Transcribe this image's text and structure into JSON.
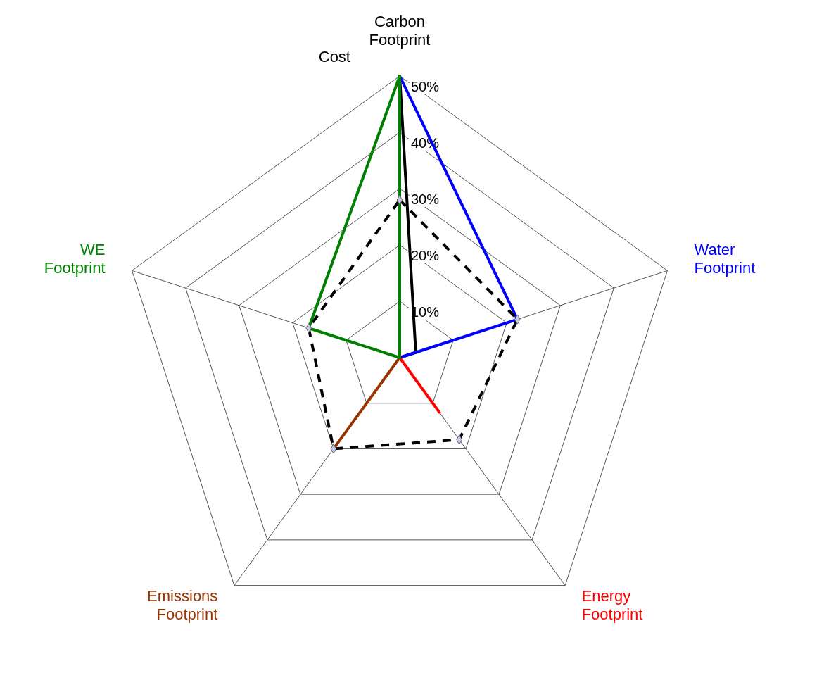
{
  "chart_data": {
    "type": "radar",
    "categories": [
      "Carbon Footprint",
      "Water Footprint",
      "Energy Footprint",
      "Emissions Footprint",
      "WE Footprint"
    ],
    "ylim": [
      0,
      50
    ],
    "yticks": [
      {
        "value": 10,
        "label": "10%"
      },
      {
        "value": 20,
        "label": "20%"
      },
      {
        "value": 30,
        "label": "30%"
      },
      {
        "value": 40,
        "label": "40%"
      },
      {
        "value": 50,
        "label": "50%"
      }
    ],
    "grid": true,
    "marker": "none",
    "series": [
      {
        "color": "#000000",
        "values": [
          50,
          3,
          0,
          0,
          0
        ]
      },
      {
        "color": "#0000ff",
        "values": [
          50,
          22,
          0,
          0,
          0
        ]
      },
      {
        "color": "#ff0000",
        "values": [
          50,
          0,
          12,
          0,
          0
        ]
      },
      {
        "color": "#993300",
        "values": [
          50,
          0,
          0,
          20,
          0
        ]
      },
      {
        "color": "#008000",
        "values": [
          50,
          0,
          0,
          0,
          17
        ]
      },
      {
        "name": "Cost",
        "color": "#000000",
        "line_style": "dashed",
        "marker": "diamond",
        "values": [
          28,
          22,
          18,
          20,
          17
        ]
      }
    ]
  }
}
